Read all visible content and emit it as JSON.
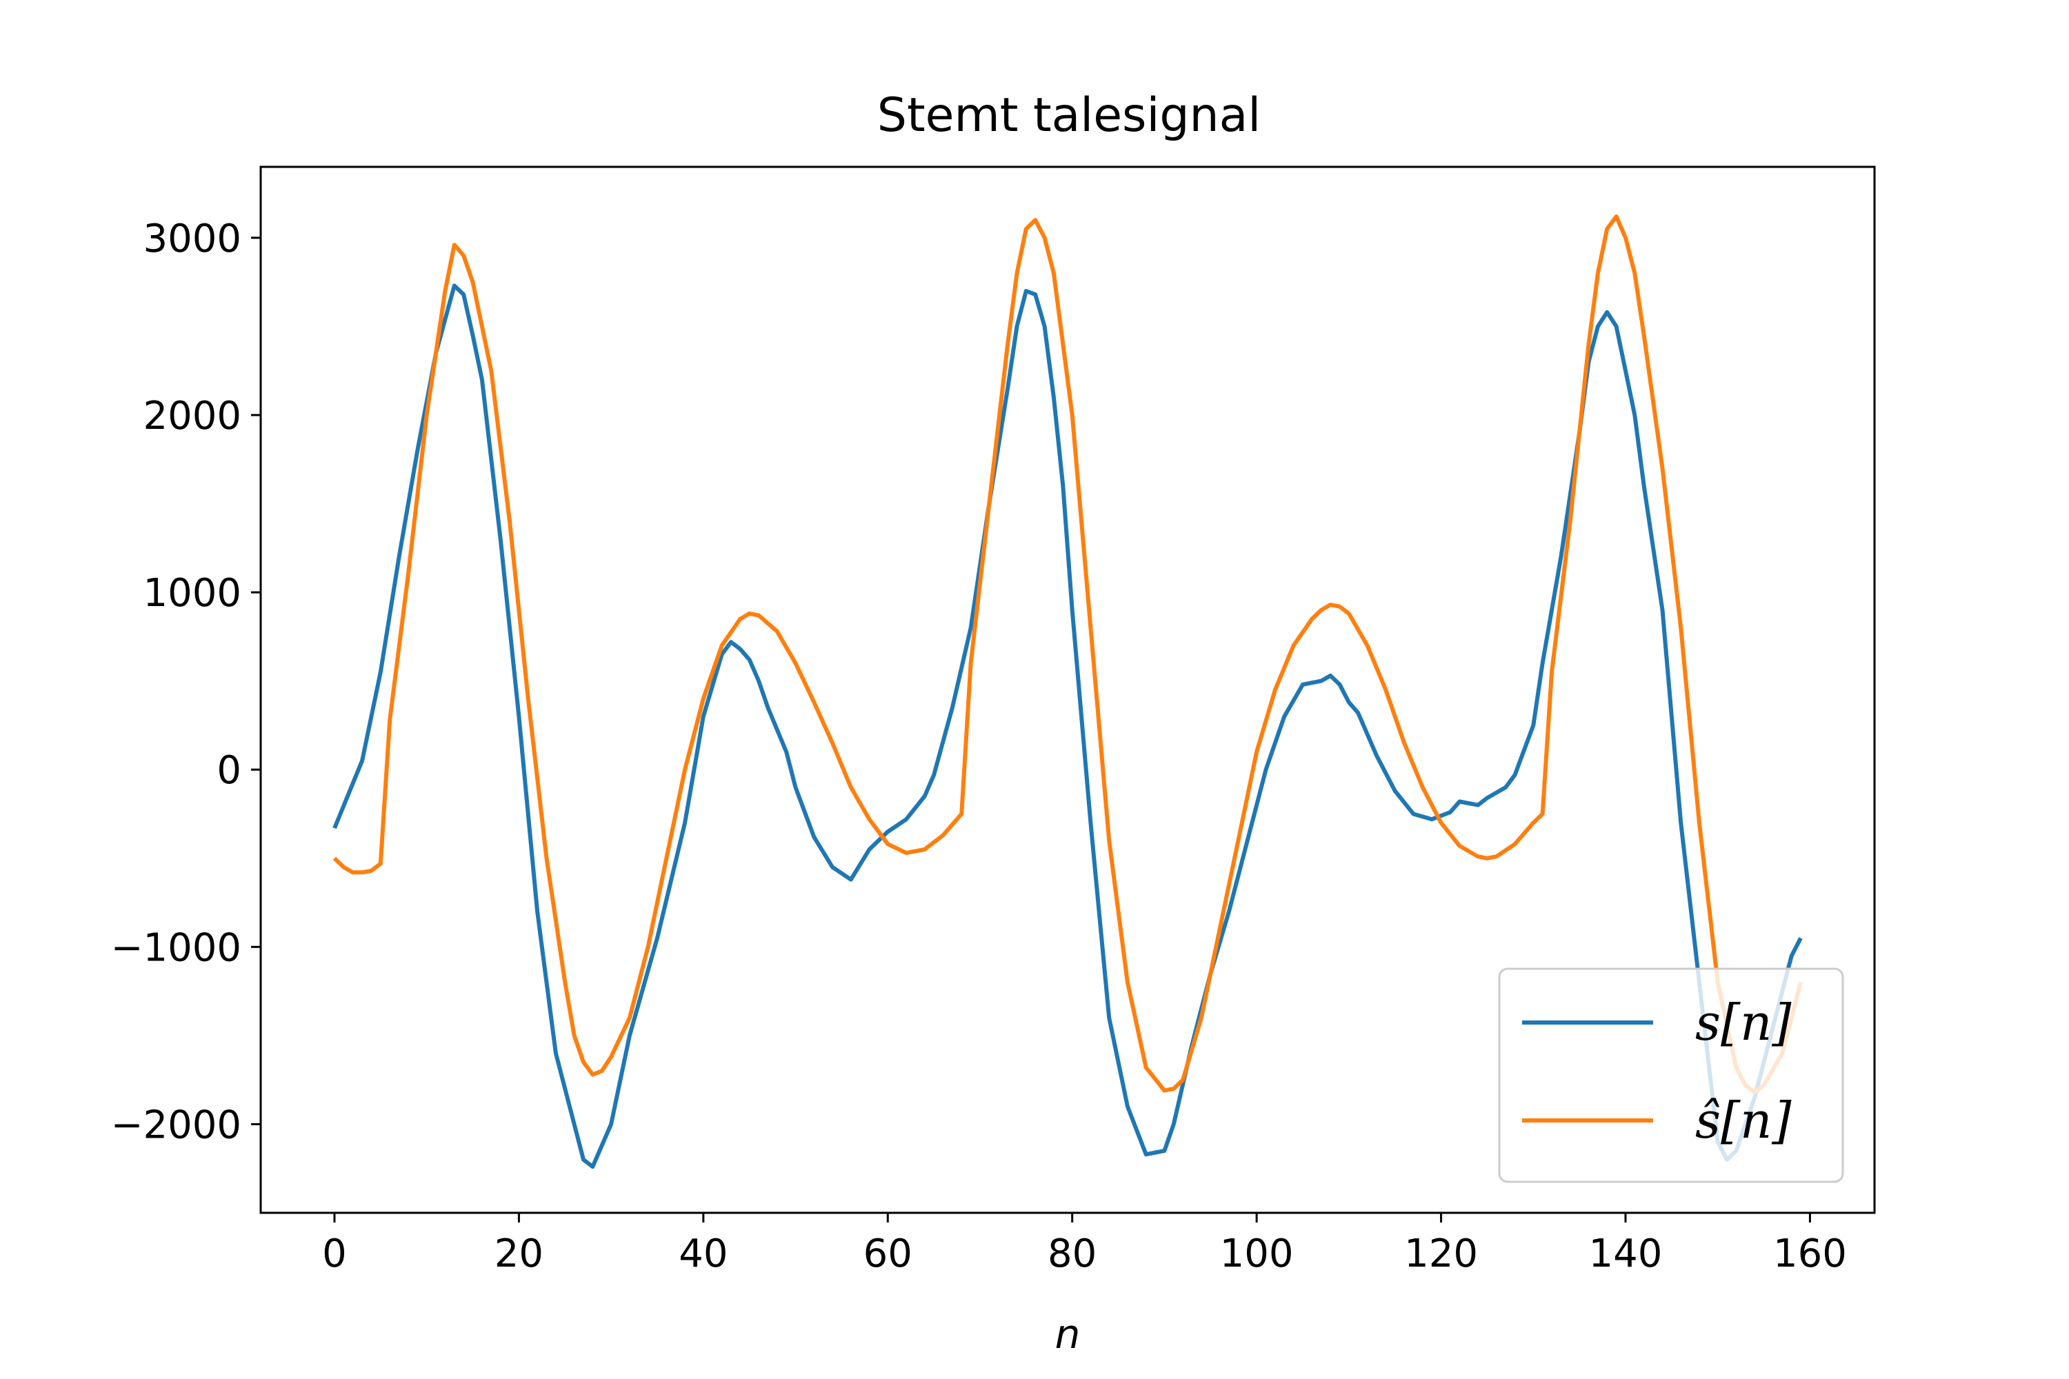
{
  "chart_data": {
    "type": "line",
    "title": "Stemt talesignal",
    "xlabel": "n",
    "ylabel": "",
    "xlim": [
      -8,
      167
    ],
    "ylim": [
      -2500,
      3400
    ],
    "xticks": [
      0,
      20,
      40,
      60,
      80,
      100,
      120,
      140,
      160
    ],
    "xtick_labels": [
      "0",
      "20",
      "40",
      "60",
      "80",
      "100",
      "120",
      "140",
      "160"
    ],
    "yticks": [
      -2000,
      -1000,
      0,
      1000,
      2000,
      3000
    ],
    "ytick_labels": [
      "−2000",
      "−1000",
      "0",
      "1000",
      "2000",
      "3000"
    ],
    "grid": false,
    "legend_position": "lower-right",
    "series": [
      {
        "name": "s[n]",
        "color": "#1f77b4",
        "points": [
          [
            0,
            -330
          ],
          [
            3,
            50
          ],
          [
            5,
            550
          ],
          [
            7,
            1200
          ],
          [
            9,
            1800
          ],
          [
            11,
            2350
          ],
          [
            13,
            2730
          ],
          [
            14,
            2680
          ],
          [
            15,
            2450
          ],
          [
            16,
            2200
          ],
          [
            18,
            1300
          ],
          [
            20,
            300
          ],
          [
            22,
            -800
          ],
          [
            24,
            -1600
          ],
          [
            26,
            -2000
          ],
          [
            27,
            -2200
          ],
          [
            28,
            -2240
          ],
          [
            30,
            -2000
          ],
          [
            32,
            -1500
          ],
          [
            35,
            -950
          ],
          [
            38,
            -300
          ],
          [
            40,
            300
          ],
          [
            42,
            650
          ],
          [
            43,
            720
          ],
          [
            44,
            680
          ],
          [
            45,
            620
          ],
          [
            46,
            500
          ],
          [
            47,
            350
          ],
          [
            49,
            100
          ],
          [
            50,
            -100
          ],
          [
            52,
            -380
          ],
          [
            54,
            -550
          ],
          [
            56,
            -620
          ],
          [
            58,
            -450
          ],
          [
            60,
            -350
          ],
          [
            62,
            -280
          ],
          [
            64,
            -150
          ],
          [
            65,
            -30
          ],
          [
            67,
            350
          ],
          [
            69,
            800
          ],
          [
            71,
            1500
          ],
          [
            73,
            2150
          ],
          [
            74,
            2500
          ],
          [
            75,
            2700
          ],
          [
            76,
            2680
          ],
          [
            77,
            2500
          ],
          [
            78,
            2100
          ],
          [
            79,
            1600
          ],
          [
            80,
            900
          ],
          [
            82,
            -300
          ],
          [
            84,
            -1400
          ],
          [
            86,
            -1900
          ],
          [
            88,
            -2170
          ],
          [
            90,
            -2150
          ],
          [
            91,
            -2000
          ],
          [
            93,
            -1550
          ],
          [
            95,
            -1150
          ],
          [
            97,
            -800
          ],
          [
            99,
            -400
          ],
          [
            101,
            0
          ],
          [
            103,
            300
          ],
          [
            105,
            480
          ],
          [
            107,
            500
          ],
          [
            108,
            530
          ],
          [
            109,
            480
          ],
          [
            110,
            380
          ],
          [
            111,
            320
          ],
          [
            113,
            80
          ],
          [
            115,
            -120
          ],
          [
            117,
            -250
          ],
          [
            119,
            -280
          ],
          [
            121,
            -240
          ],
          [
            122,
            -180
          ],
          [
            124,
            -200
          ],
          [
            125,
            -160
          ],
          [
            127,
            -100
          ],
          [
            128,
            -30
          ],
          [
            130,
            250
          ],
          [
            131,
            600
          ],
          [
            133,
            1200
          ],
          [
            135,
            1900
          ],
          [
            136,
            2300
          ],
          [
            137,
            2500
          ],
          [
            138,
            2580
          ],
          [
            139,
            2500
          ],
          [
            140,
            2250
          ],
          [
            141,
            2000
          ],
          [
            142,
            1600
          ],
          [
            144,
            900
          ],
          [
            146,
            -300
          ],
          [
            148,
            -1200
          ],
          [
            150,
            -2100
          ],
          [
            151,
            -2200
          ],
          [
            152,
            -2150
          ],
          [
            154,
            -1850
          ],
          [
            156,
            -1450
          ],
          [
            158,
            -1050
          ],
          [
            159,
            -950
          ]
        ]
      },
      {
        "name": "ŝ[n]",
        "color": "#ff7f0e",
        "points": [
          [
            0,
            -500
          ],
          [
            1,
            -550
          ],
          [
            2,
            -580
          ],
          [
            3,
            -580
          ],
          [
            4,
            -570
          ],
          [
            5,
            -530
          ],
          [
            6,
            280
          ],
          [
            8,
            1100
          ],
          [
            10,
            2000
          ],
          [
            12,
            2700
          ],
          [
            13,
            2960
          ],
          [
            14,
            2900
          ],
          [
            15,
            2750
          ],
          [
            17,
            2250
          ],
          [
            19,
            1400
          ],
          [
            21,
            400
          ],
          [
            23,
            -500
          ],
          [
            25,
            -1200
          ],
          [
            26,
            -1500
          ],
          [
            27,
            -1650
          ],
          [
            28,
            -1720
          ],
          [
            29,
            -1700
          ],
          [
            30,
            -1620
          ],
          [
            32,
            -1400
          ],
          [
            34,
            -1000
          ],
          [
            36,
            -500
          ],
          [
            38,
            0
          ],
          [
            40,
            400
          ],
          [
            42,
            700
          ],
          [
            44,
            850
          ],
          [
            45,
            880
          ],
          [
            46,
            870
          ],
          [
            48,
            780
          ],
          [
            50,
            600
          ],
          [
            52,
            380
          ],
          [
            54,
            150
          ],
          [
            56,
            -100
          ],
          [
            58,
            -280
          ],
          [
            60,
            -420
          ],
          [
            62,
            -470
          ],
          [
            64,
            -450
          ],
          [
            66,
            -370
          ],
          [
            68,
            -250
          ],
          [
            69,
            600
          ],
          [
            71,
            1500
          ],
          [
            73,
            2400
          ],
          [
            74,
            2800
          ],
          [
            75,
            3050
          ],
          [
            76,
            3100
          ],
          [
            77,
            3000
          ],
          [
            78,
            2800
          ],
          [
            80,
            2000
          ],
          [
            82,
            800
          ],
          [
            84,
            -400
          ],
          [
            86,
            -1200
          ],
          [
            88,
            -1680
          ],
          [
            90,
            -1810
          ],
          [
            91,
            -1800
          ],
          [
            92,
            -1750
          ],
          [
            94,
            -1400
          ],
          [
            96,
            -900
          ],
          [
            98,
            -400
          ],
          [
            100,
            100
          ],
          [
            102,
            450
          ],
          [
            104,
            700
          ],
          [
            106,
            850
          ],
          [
            107,
            900
          ],
          [
            108,
            930
          ],
          [
            109,
            920
          ],
          [
            110,
            880
          ],
          [
            112,
            700
          ],
          [
            114,
            450
          ],
          [
            116,
            150
          ],
          [
            118,
            -100
          ],
          [
            120,
            -300
          ],
          [
            122,
            -430
          ],
          [
            124,
            -490
          ],
          [
            125,
            -500
          ],
          [
            126,
            -490
          ],
          [
            128,
            -420
          ],
          [
            130,
            -300
          ],
          [
            131,
            -250
          ],
          [
            132,
            550
          ],
          [
            134,
            1400
          ],
          [
            136,
            2400
          ],
          [
            137,
            2800
          ],
          [
            138,
            3050
          ],
          [
            139,
            3120
          ],
          [
            140,
            3000
          ],
          [
            141,
            2800
          ],
          [
            142,
            2450
          ],
          [
            144,
            1700
          ],
          [
            146,
            800
          ],
          [
            148,
            -300
          ],
          [
            150,
            -1200
          ],
          [
            152,
            -1680
          ],
          [
            153,
            -1780
          ],
          [
            154,
            -1820
          ],
          [
            155,
            -1780
          ],
          [
            157,
            -1600
          ],
          [
            159,
            -1200
          ]
        ]
      }
    ]
  }
}
